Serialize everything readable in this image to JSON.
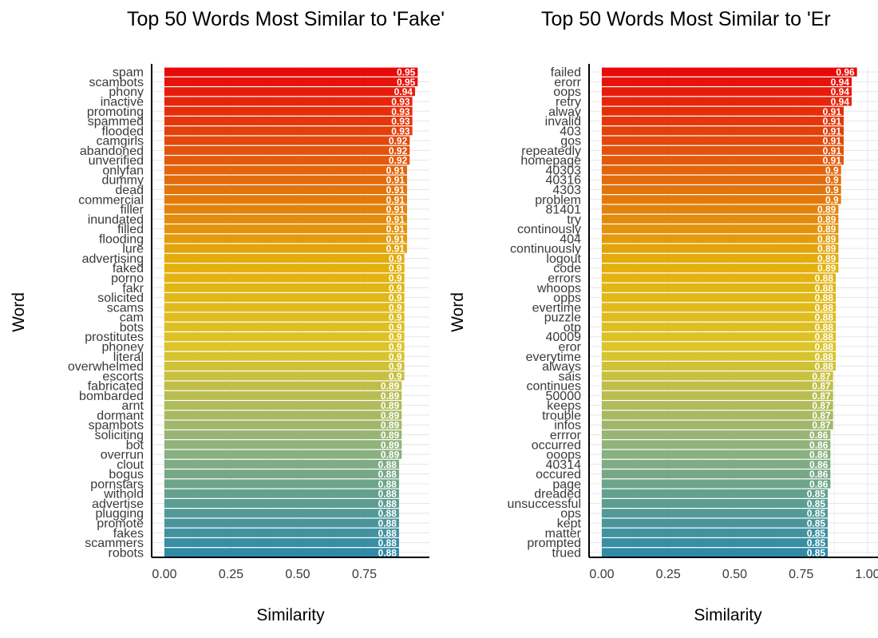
{
  "colors": {
    "top": "#e80a0a",
    "mid1": "#e2620c",
    "mid2": "#e3b00c",
    "mid3": "#dcc52a",
    "mid4": "#8fb37d",
    "bottom": "#2f8aa6",
    "grid": "#e6e6e6"
  },
  "chart_data": [
    {
      "type": "bar",
      "orientation": "horizontal",
      "title": "Top 50 Words Most Similar to 'Fake'",
      "xlabel": "Similarity",
      "ylabel": "Word",
      "xlim": [
        0,
        0.95
      ],
      "xticks": [
        "0.00",
        "0.25",
        "0.50",
        "0.75"
      ],
      "xtick_values": [
        0,
        0.25,
        0.5,
        0.75
      ],
      "grid": true,
      "categories": [
        "spam",
        "scambots",
        "phony",
        "inactive",
        "promoting",
        "spammed",
        "flooded",
        "camgirls",
        "abandoned",
        "unverified",
        "onlyfan",
        "dummy",
        "dead",
        "commercial",
        "filler",
        "inundated",
        "filled",
        "flooding",
        "lure",
        "advertising",
        "faked",
        "porno",
        "fakr",
        "solicited",
        "scams",
        "cam",
        "bots",
        "prostitutes",
        "phoney",
        "literal",
        "overwhelmed",
        "escorts",
        "fabricated",
        "bombarded",
        "arnt",
        "dormant",
        "spambots",
        "soliciting",
        "bot",
        "overrun",
        "clout",
        "bogus",
        "pornstars",
        "withold",
        "advertise",
        "plugging",
        "promote",
        "fakes",
        "scammers",
        "robots"
      ],
      "values": [
        0.95,
        0.95,
        0.94,
        0.93,
        0.93,
        0.93,
        0.93,
        0.92,
        0.92,
        0.92,
        0.91,
        0.91,
        0.91,
        0.91,
        0.91,
        0.91,
        0.91,
        0.91,
        0.91,
        0.9,
        0.9,
        0.9,
        0.9,
        0.9,
        0.9,
        0.9,
        0.9,
        0.9,
        0.9,
        0.9,
        0.9,
        0.9,
        0.89,
        0.89,
        0.89,
        0.89,
        0.89,
        0.89,
        0.89,
        0.89,
        0.88,
        0.88,
        0.88,
        0.88,
        0.88,
        0.88,
        0.88,
        0.88,
        0.88,
        0.88
      ],
      "value_labels": [
        "0.95",
        "0.95",
        "0.94",
        "0.93",
        "0.93",
        "0.93",
        "0.93",
        "0.92",
        "0.92",
        "0.92",
        "0.91",
        "0.91",
        "0.91",
        "0.91",
        "0.91",
        "0.91",
        "0.91",
        "0.91",
        "0.91",
        "0.9",
        "0.9",
        "0.9",
        "0.9",
        "0.9",
        "0.9",
        "0.9",
        "0.9",
        "0.9",
        "0.9",
        "0.9",
        "0.9",
        "0.9",
        "0.89",
        "0.89",
        "0.89",
        "0.89",
        "0.89",
        "0.89",
        "0.89",
        "0.89",
        "0.88",
        "0.88",
        "0.88",
        "0.88",
        "0.88",
        "0.88",
        "0.88",
        "0.88",
        "0.88",
        "0.88"
      ]
    },
    {
      "type": "bar",
      "orientation": "horizontal",
      "title": "Top 50 Words Most Similar to 'Er",
      "xlabel": "Similarity",
      "ylabel": "Word",
      "xlim": [
        0,
        1.0
      ],
      "xticks": [
        "0.00",
        "0.25",
        "0.50",
        "0.75",
        "1.00"
      ],
      "xtick_values": [
        0,
        0.25,
        0.5,
        0.75,
        1.0
      ],
      "grid": true,
      "categories": [
        "failed",
        "erorr",
        "oops",
        "retry",
        "alway",
        "invalid",
        "403",
        "gos",
        "repeatedly",
        "homepage",
        "40303",
        "40316",
        "4303",
        "problem",
        "81401",
        "try",
        "continously",
        "404",
        "continuously",
        "logout",
        "code",
        "errors",
        "whoops",
        "opps",
        "evertime",
        "puzzle",
        "otp",
        "40009",
        "eror",
        "everytime",
        "always",
        "sais",
        "continues",
        "50000",
        "keeps",
        "trouble",
        "infos",
        "errror",
        "occurred",
        "ooops",
        "40314",
        "occured",
        "page",
        "dreaded",
        "unsuccessful",
        "ops",
        "kept",
        "matter",
        "prompted",
        "trued"
      ],
      "values": [
        0.96,
        0.94,
        0.94,
        0.94,
        0.91,
        0.91,
        0.91,
        0.91,
        0.91,
        0.91,
        0.9,
        0.9,
        0.9,
        0.9,
        0.89,
        0.89,
        0.89,
        0.89,
        0.89,
        0.89,
        0.89,
        0.88,
        0.88,
        0.88,
        0.88,
        0.88,
        0.88,
        0.88,
        0.88,
        0.88,
        0.88,
        0.87,
        0.87,
        0.87,
        0.87,
        0.87,
        0.87,
        0.86,
        0.86,
        0.86,
        0.86,
        0.86,
        0.86,
        0.85,
        0.85,
        0.85,
        0.85,
        0.85,
        0.85,
        0.85
      ],
      "value_labels": [
        "0.96",
        "0.94",
        "0.94",
        "0.94",
        "0.91",
        "0.91",
        "0.91",
        "0.91",
        "0.91",
        "0.91",
        "0.9",
        "0.9",
        "0.9",
        "0.9",
        "0.89",
        "0.89",
        "0.89",
        "0.89",
        "0.89",
        "0.89",
        "0.89",
        "0.88",
        "0.88",
        "0.88",
        "0.88",
        "0.88",
        "0.88",
        "0.88",
        "0.88",
        "0.88",
        "0.88",
        "0.87",
        "0.87",
        "0.87",
        "0.87",
        "0.87",
        "0.87",
        "0.86",
        "0.86",
        "0.86",
        "0.86",
        "0.86",
        "0.86",
        "0.85",
        "0.85",
        "0.85",
        "0.85",
        "0.85",
        "0.85",
        "0.85"
      ]
    }
  ]
}
